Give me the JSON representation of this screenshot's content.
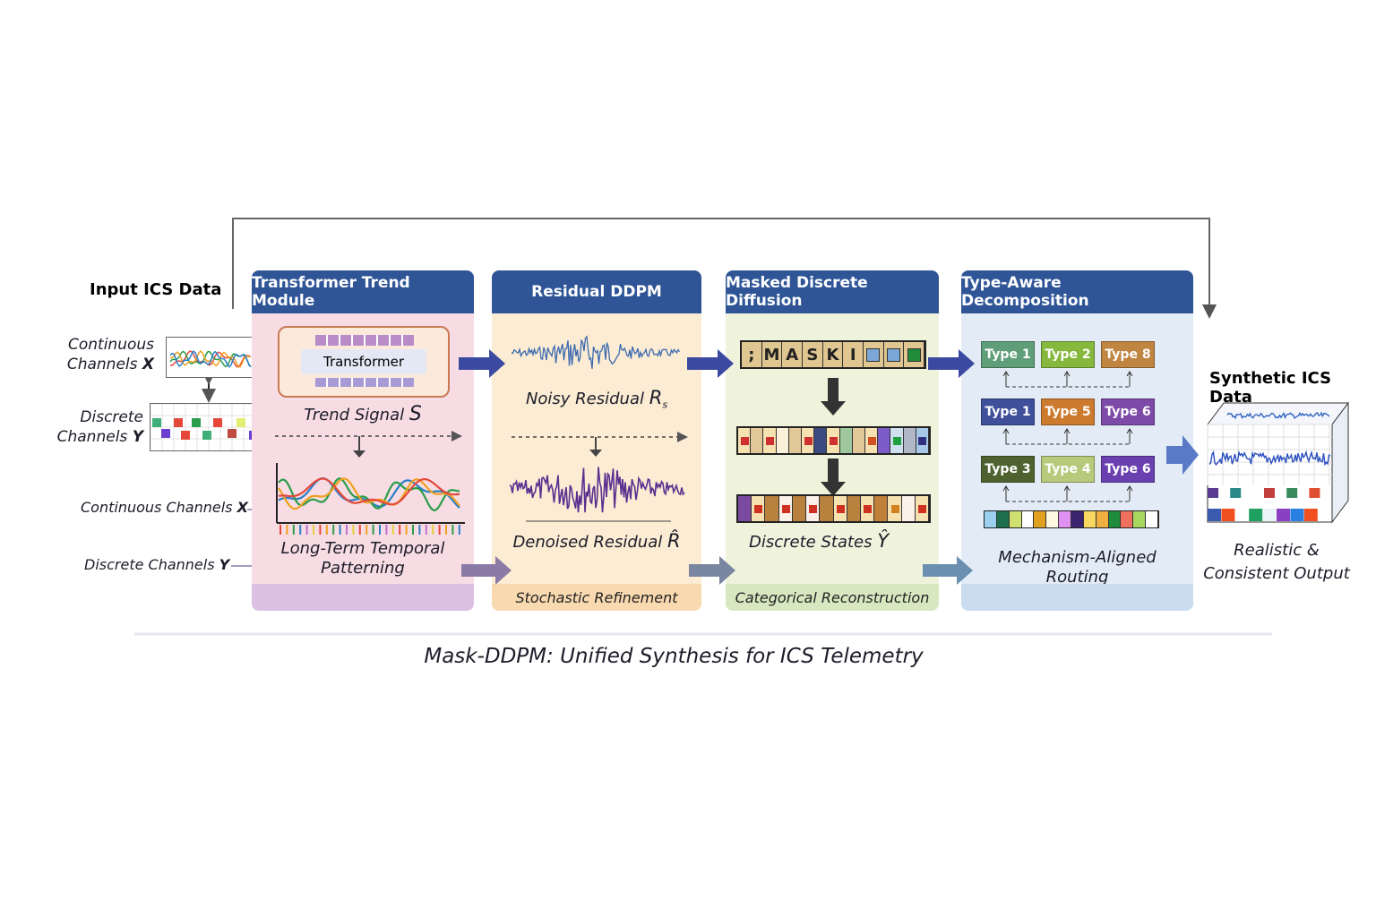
{
  "input": {
    "title": "Input ICS Data",
    "continuous_label": "Continuous Channels",
    "continuous_symbol": "X",
    "discrete_label": "Discrete Channels",
    "discrete_symbol": "Y",
    "continuous_arrow_label": "Continuous Channels",
    "discrete_arrow_label": "Discrete Channels"
  },
  "panels": [
    {
      "title": "Transformer Trend Module",
      "block_label": "Transformer",
      "signal_label": "Trend Signal",
      "signal_symbol": "S",
      "caption": "Long-Term Temporal Patterning",
      "footer": "",
      "color": "#f7dde3",
      "footer_color": "#dcc0e4"
    },
    {
      "title": "Residual  DDPM",
      "noisy_label": "Noisy Residual",
      "noisy_symbol": "R",
      "noisy_sub": "s",
      "denoised_label": "Denoised Residual",
      "denoised_symbol": "R̂",
      "footer": "Stochastic Refinement",
      "color": "#fbecd3",
      "footer_color": "#f9d9b0"
    },
    {
      "title": "Masked Discrete Diffusion",
      "mask_tokens": [
        ";",
        "M",
        "A",
        "S",
        "K",
        "I"
      ],
      "states_label": "Discrete States",
      "states_symbol": "Ŷ",
      "footer": "Categorical Reconstruction",
      "color": "#eff3dc",
      "footer_color": "#d7e8c0"
    },
    {
      "title": "Type-Aware Decomposition",
      "type_rows": [
        [
          {
            "label": "Type 1",
            "color": "#5f9e78"
          },
          {
            "label": "Type 2",
            "color": "#86b83e"
          },
          {
            "label": "Type 8",
            "color": "#c08540"
          }
        ],
        [
          {
            "label": "Type 1",
            "color": "#3f4f9a"
          },
          {
            "label": "Type 5",
            "color": "#cc7a2e"
          },
          {
            "label": "Type 6",
            "color": "#7d4aa8"
          }
        ],
        [
          {
            "label": "Type 3",
            "color": "#4e6230"
          },
          {
            "label": "Type 4",
            "color": "#b7c97a"
          },
          {
            "label": "Type 6",
            "color": "#6a3fb0"
          }
        ]
      ],
      "caption": "Mechanism-Aligned Routing",
      "footer": "",
      "color": "#e3ecf6",
      "footer_color": "#c9dcf0"
    }
  ],
  "output": {
    "title": "Synthetic ICS Data",
    "caption": "Realistic & Consistent Output"
  },
  "figure_caption": "Mask-DDPM: Unified Synthesis for ICS Telemetry",
  "colors": {
    "header": "#2f5597",
    "arrow": "#3b4aa0"
  }
}
